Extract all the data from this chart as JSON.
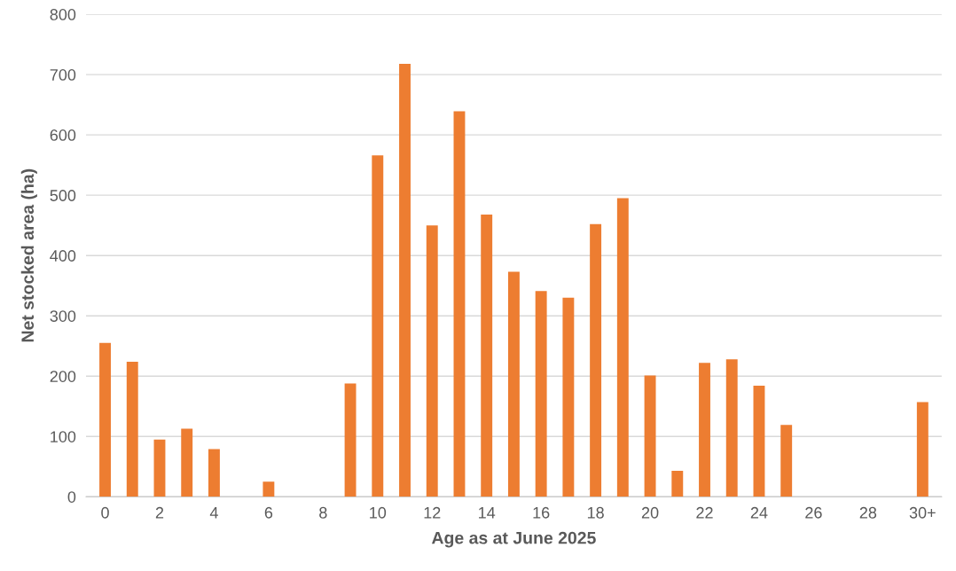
{
  "chart_data": {
    "type": "bar",
    "xlabel": "Age as at June 2025",
    "ylabel": "Net stocked area (ha)",
    "categories": [
      "0",
      null,
      "2",
      null,
      "4",
      null,
      "6",
      null,
      "8",
      null,
      "10",
      null,
      "12",
      null,
      "14",
      null,
      "16",
      null,
      "18",
      null,
      "20",
      null,
      "22",
      null,
      "24",
      null,
      "26",
      null,
      "28",
      null,
      "30+"
    ],
    "values": [
      255,
      224,
      95,
      113,
      79,
      0,
      25,
      0,
      0,
      188,
      566,
      718,
      450,
      639,
      468,
      373,
      341,
      330,
      452,
      495,
      201,
      43,
      222,
      228,
      184,
      119,
      0,
      0,
      0,
      0,
      157
    ],
    "color": "#ed7d31",
    "ylim": [
      0,
      800
    ],
    "yticks": [
      0,
      100,
      200,
      300,
      400,
      500,
      600,
      700,
      800
    ],
    "grid": "y"
  }
}
